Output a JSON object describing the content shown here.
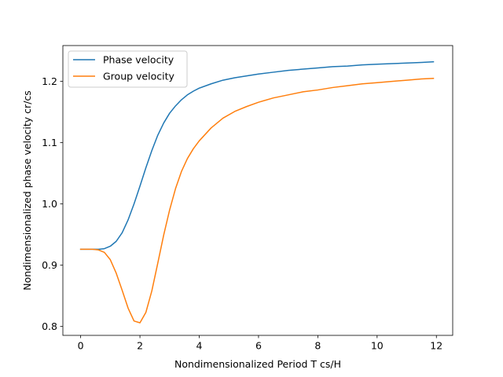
{
  "chart_data": {
    "type": "line",
    "xlabel": "Nondimensionalized Period T cs/H",
    "ylabel": "Nondimensionalized phase velocity cr/cs",
    "xlim": [
      -0.6,
      12.55
    ],
    "ylim": [
      0.7855,
      1.2585
    ],
    "xticks": [
      0,
      2,
      4,
      6,
      8,
      10,
      12
    ],
    "yticks": [
      0.8,
      0.9,
      1.0,
      1.1,
      1.2
    ],
    "ytick_labels": [
      "0.8",
      "0.9",
      "1.0",
      "1.1",
      "1.2"
    ],
    "grid": false,
    "legend_position": "top-left",
    "series": [
      {
        "name": "Phase velocity",
        "color": "#1f77b4",
        "x": [
          0,
          0.2,
          0.4,
          0.6,
          0.8,
          1.0,
          1.2,
          1.4,
          1.6,
          1.8,
          2.0,
          2.2,
          2.4,
          2.6,
          2.8,
          3.0,
          3.2,
          3.4,
          3.6,
          3.8,
          4.0,
          4.4,
          4.8,
          5.2,
          5.6,
          6.0,
          6.5,
          7.0,
          7.5,
          8.0,
          8.5,
          9.0,
          9.5,
          10.0,
          10.5,
          11.0,
          11.5,
          11.9
        ],
        "y": [
          0.926,
          0.926,
          0.926,
          0.926,
          0.927,
          0.931,
          0.939,
          0.953,
          0.974,
          1.0,
          1.029,
          1.059,
          1.087,
          1.112,
          1.132,
          1.148,
          1.16,
          1.17,
          1.178,
          1.184,
          1.189,
          1.196,
          1.202,
          1.206,
          1.209,
          1.212,
          1.215,
          1.218,
          1.22,
          1.222,
          1.224,
          1.225,
          1.227,
          1.228,
          1.229,
          1.23,
          1.231,
          1.232
        ]
      },
      {
        "name": "Group velocity",
        "color": "#ff7f0e",
        "x": [
          0,
          0.2,
          0.4,
          0.6,
          0.8,
          1.0,
          1.2,
          1.4,
          1.6,
          1.8,
          2.0,
          2.2,
          2.4,
          2.6,
          2.8,
          3.0,
          3.2,
          3.4,
          3.6,
          3.8,
          4.0,
          4.4,
          4.8,
          5.2,
          5.6,
          6.0,
          6.5,
          7.0,
          7.5,
          8.0,
          8.5,
          9.0,
          9.5,
          10.0,
          10.5,
          11.0,
          11.5,
          11.9
        ],
        "y": [
          0.926,
          0.926,
          0.926,
          0.925,
          0.921,
          0.909,
          0.887,
          0.859,
          0.83,
          0.809,
          0.806,
          0.823,
          0.858,
          0.903,
          0.949,
          0.99,
          1.025,
          1.053,
          1.074,
          1.09,
          1.103,
          1.124,
          1.14,
          1.151,
          1.159,
          1.166,
          1.173,
          1.178,
          1.183,
          1.186,
          1.19,
          1.193,
          1.196,
          1.198,
          1.2,
          1.202,
          1.204,
          1.205
        ]
      }
    ]
  }
}
